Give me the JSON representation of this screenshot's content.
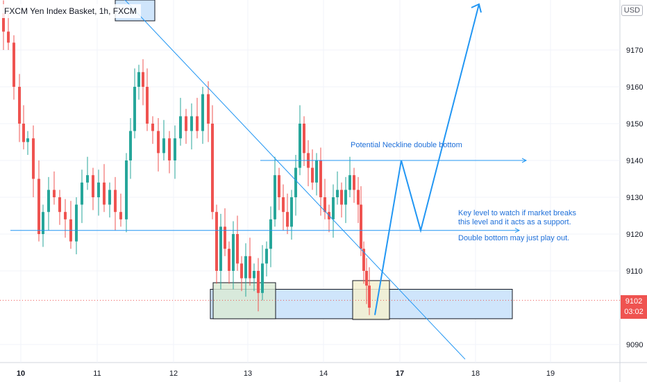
{
  "header": {
    "title": "FXCM Yen Index Basket, 1h, FXCM",
    "currency": "USD"
  },
  "last_price": {
    "value": "9102",
    "countdown": "03:02"
  },
  "annotations": {
    "neckline": "Potential Neckline double bottom",
    "key_level_line1": "Key level to watch if market breaks",
    "key_level_line2": "this level and it acts as a support.",
    "double_bottom": "Double bottom may just play out."
  },
  "colors": {
    "up": "#26a69a",
    "down": "#ef5350",
    "drawing": "#2196f3",
    "annotation_text": "#1e6fd9",
    "zone_fill": "#cfe5fb",
    "grid": "#f0f3fa"
  },
  "chart_data": {
    "type": "candlestick",
    "symbol": "FXCM Yen Index Basket",
    "timeframe": "1h",
    "exchange": "FXCM",
    "x_ticks": [
      "10",
      "11",
      "12",
      "13",
      "14",
      "17",
      "18",
      "19"
    ],
    "y_ticks": [
      9090,
      9110,
      9120,
      9130,
      9140,
      9150,
      9160,
      9170
    ],
    "ylim": [
      9084,
      9184
    ],
    "last_price": 9102,
    "price_series_approx": [
      [
        0,
        9180
      ],
      [
        5,
        9175
      ],
      [
        12,
        9172
      ],
      [
        20,
        9160
      ],
      [
        28,
        9150
      ],
      [
        34,
        9145
      ],
      [
        40,
        9146
      ],
      [
        48,
        9135
      ],
      [
        56,
        9120
      ],
      [
        62,
        9126
      ],
      [
        70,
        9132
      ],
      [
        78,
        9130
      ],
      [
        86,
        9126
      ],
      [
        94,
        9124
      ],
      [
        102,
        9118
      ],
      [
        110,
        9128
      ],
      [
        118,
        9134
      ],
      [
        126,
        9136
      ],
      [
        134,
        9130
      ],
      [
        142,
        9134
      ],
      [
        150,
        9128
      ],
      [
        158,
        9132
      ],
      [
        166,
        9126
      ],
      [
        174,
        9124
      ],
      [
        182,
        9140
      ],
      [
        188,
        9148
      ],
      [
        194,
        9160
      ],
      [
        200,
        9164
      ],
      [
        206,
        9160
      ],
      [
        212,
        9150
      ],
      [
        220,
        9148
      ],
      [
        228,
        9142
      ],
      [
        236,
        9146
      ],
      [
        244,
        9140
      ],
      [
        252,
        9146
      ],
      [
        260,
        9152
      ],
      [
        268,
        9148
      ],
      [
        276,
        9152
      ],
      [
        284,
        9148
      ],
      [
        292,
        9158
      ],
      [
        300,
        9150
      ],
      [
        306,
        9126
      ],
      [
        312,
        9110
      ],
      [
        318,
        9122
      ],
      [
        324,
        9116
      ],
      [
        330,
        9110
      ],
      [
        336,
        9120
      ],
      [
        342,
        9112
      ],
      [
        348,
        9108
      ],
      [
        354,
        9114
      ],
      [
        360,
        9108
      ],
      [
        366,
        9110
      ],
      [
        372,
        9104
      ],
      [
        378,
        9112
      ],
      [
        384,
        9116
      ],
      [
        390,
        9124
      ],
      [
        396,
        9136
      ],
      [
        402,
        9130
      ],
      [
        408,
        9126
      ],
      [
        414,
        9122
      ],
      [
        420,
        9130
      ],
      [
        426,
        9138
      ],
      [
        432,
        9150
      ],
      [
        438,
        9142
      ],
      [
        444,
        9138
      ],
      [
        450,
        9134
      ],
      [
        456,
        9140
      ],
      [
        462,
        9130
      ],
      [
        468,
        9126
      ],
      [
        474,
        9124
      ],
      [
        480,
        9130
      ],
      [
        486,
        9132
      ],
      [
        492,
        9128
      ],
      [
        498,
        9132
      ],
      [
        504,
        9136
      ],
      [
        510,
        9132
      ],
      [
        516,
        9128
      ],
      [
        520,
        9116
      ],
      [
        524,
        9110
      ],
      [
        528,
        9106
      ],
      [
        532,
        9100
      ]
    ],
    "drawings": [
      {
        "kind": "trendline",
        "from": [
          178,
          9184
        ],
        "to": [
          670,
          9086
        ]
      },
      {
        "kind": "horizontal_ray",
        "price": 9121,
        "from_x": 15,
        "to_x": 748
      },
      {
        "kind": "horizontal_ray",
        "price": 9140,
        "from_x": 375,
        "to_x": 758
      },
      {
        "kind": "rectangle",
        "from": [
          303,
          9105
        ],
        "to": [
          738,
          9097
        ]
      },
      {
        "kind": "projection_path",
        "points": [
          [
            540,
            9098
          ],
          [
            578,
            9140
          ],
          [
            606,
            9121
          ],
          [
            690,
            9184
          ]
        ]
      }
    ]
  }
}
